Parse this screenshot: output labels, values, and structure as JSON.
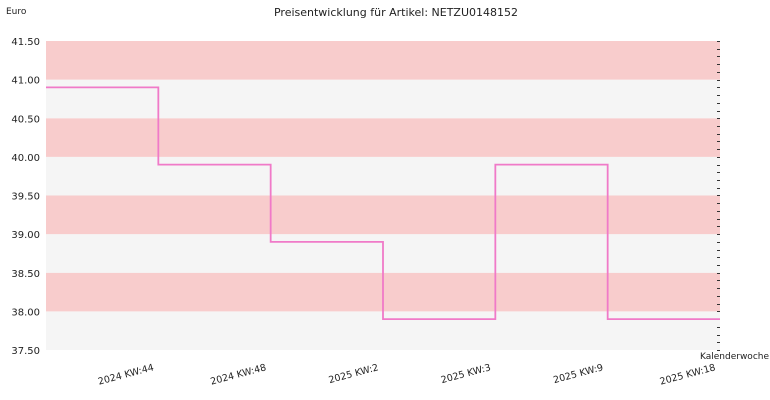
{
  "chart_data": {
    "type": "line",
    "step": true,
    "title": "Preisentwicklung für Artikel: NETZU0148152",
    "ylabel": "Euro",
    "xlabel": "Kalenderwoche",
    "ylim": [
      37.5,
      41.5
    ],
    "yticks": [
      "41.50",
      "41.00",
      "40.50",
      "40.00",
      "39.50",
      "39.00",
      "38.50",
      "38.00",
      "37.50"
    ],
    "categories": [
      "2024 KW:44",
      "2024 KW:48",
      "2025 KW:2",
      "2025 KW:3",
      "2025 KW:9",
      "2025 KW:18"
    ],
    "series": [
      {
        "values": [
          40.9,
          39.9,
          38.9,
          37.9,
          39.9,
          37.9
        ]
      }
    ],
    "grid": true,
    "band_colors": [
      "#f8cccc",
      "#f5f5f5"
    ],
    "line_color": "#f07ac8"
  }
}
